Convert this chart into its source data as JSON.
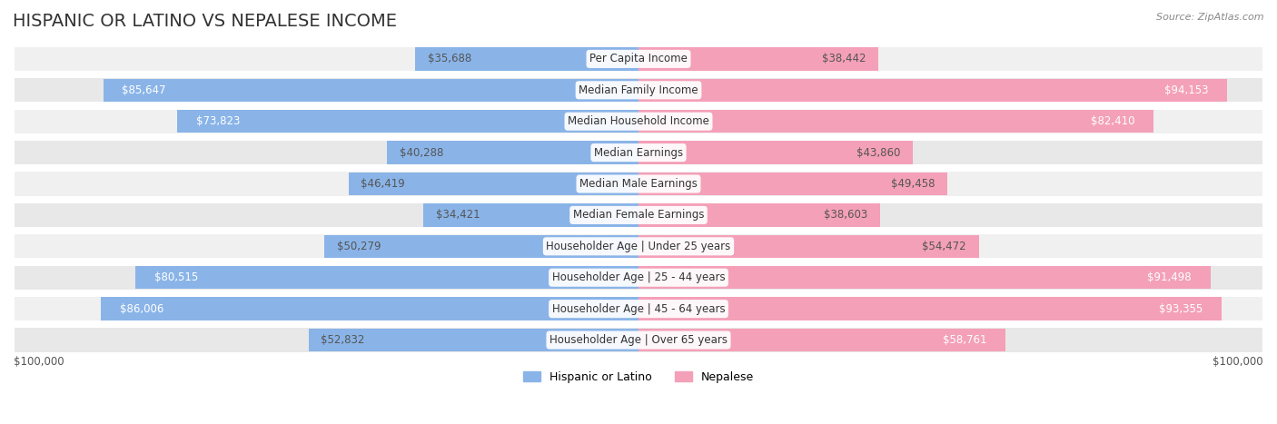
{
  "title": "HISPANIC OR LATINO VS NEPALESE INCOME",
  "source": "Source: ZipAtlas.com",
  "categories": [
    "Per Capita Income",
    "Median Family Income",
    "Median Household Income",
    "Median Earnings",
    "Median Male Earnings",
    "Median Female Earnings",
    "Householder Age | Under 25 years",
    "Householder Age | 25 - 44 years",
    "Householder Age | 45 - 64 years",
    "Householder Age | Over 65 years"
  ],
  "hispanic_values": [
    35688,
    85647,
    73823,
    40288,
    46419,
    34421,
    50279,
    80515,
    86006,
    52832
  ],
  "nepalese_values": [
    38442,
    94153,
    82410,
    43860,
    49458,
    38603,
    54472,
    91498,
    93355,
    58761
  ],
  "hispanic_labels": [
    "$35,688",
    "$85,647",
    "$73,823",
    "$40,288",
    "$46,419",
    "$34,421",
    "$50,279",
    "$80,515",
    "$86,006",
    "$52,832"
  ],
  "nepalese_labels": [
    "$38,442",
    "$94,153",
    "$82,410",
    "$43,860",
    "$49,458",
    "$38,603",
    "$54,472",
    "$91,498",
    "$93,355",
    "$58,761"
  ],
  "hispanic_color": "#8ab4e8",
  "nepalese_color": "#f4a0b8",
  "hispanic_color_dark": "#5a8fd0",
  "nepalese_color_dark": "#e8607a",
  "bar_row_bg_light": "#f5f5f5",
  "bar_row_bg_dark": "#ebebeb",
  "max_value": 100000,
  "legend_hispanic": "Hispanic or Latino",
  "legend_nepalese": "Nepalese",
  "xlabel_left": "$100,000",
  "xlabel_right": "$100,000",
  "background_color": "#ffffff",
  "title_fontsize": 14,
  "label_fontsize": 8.5,
  "category_fontsize": 8.5
}
